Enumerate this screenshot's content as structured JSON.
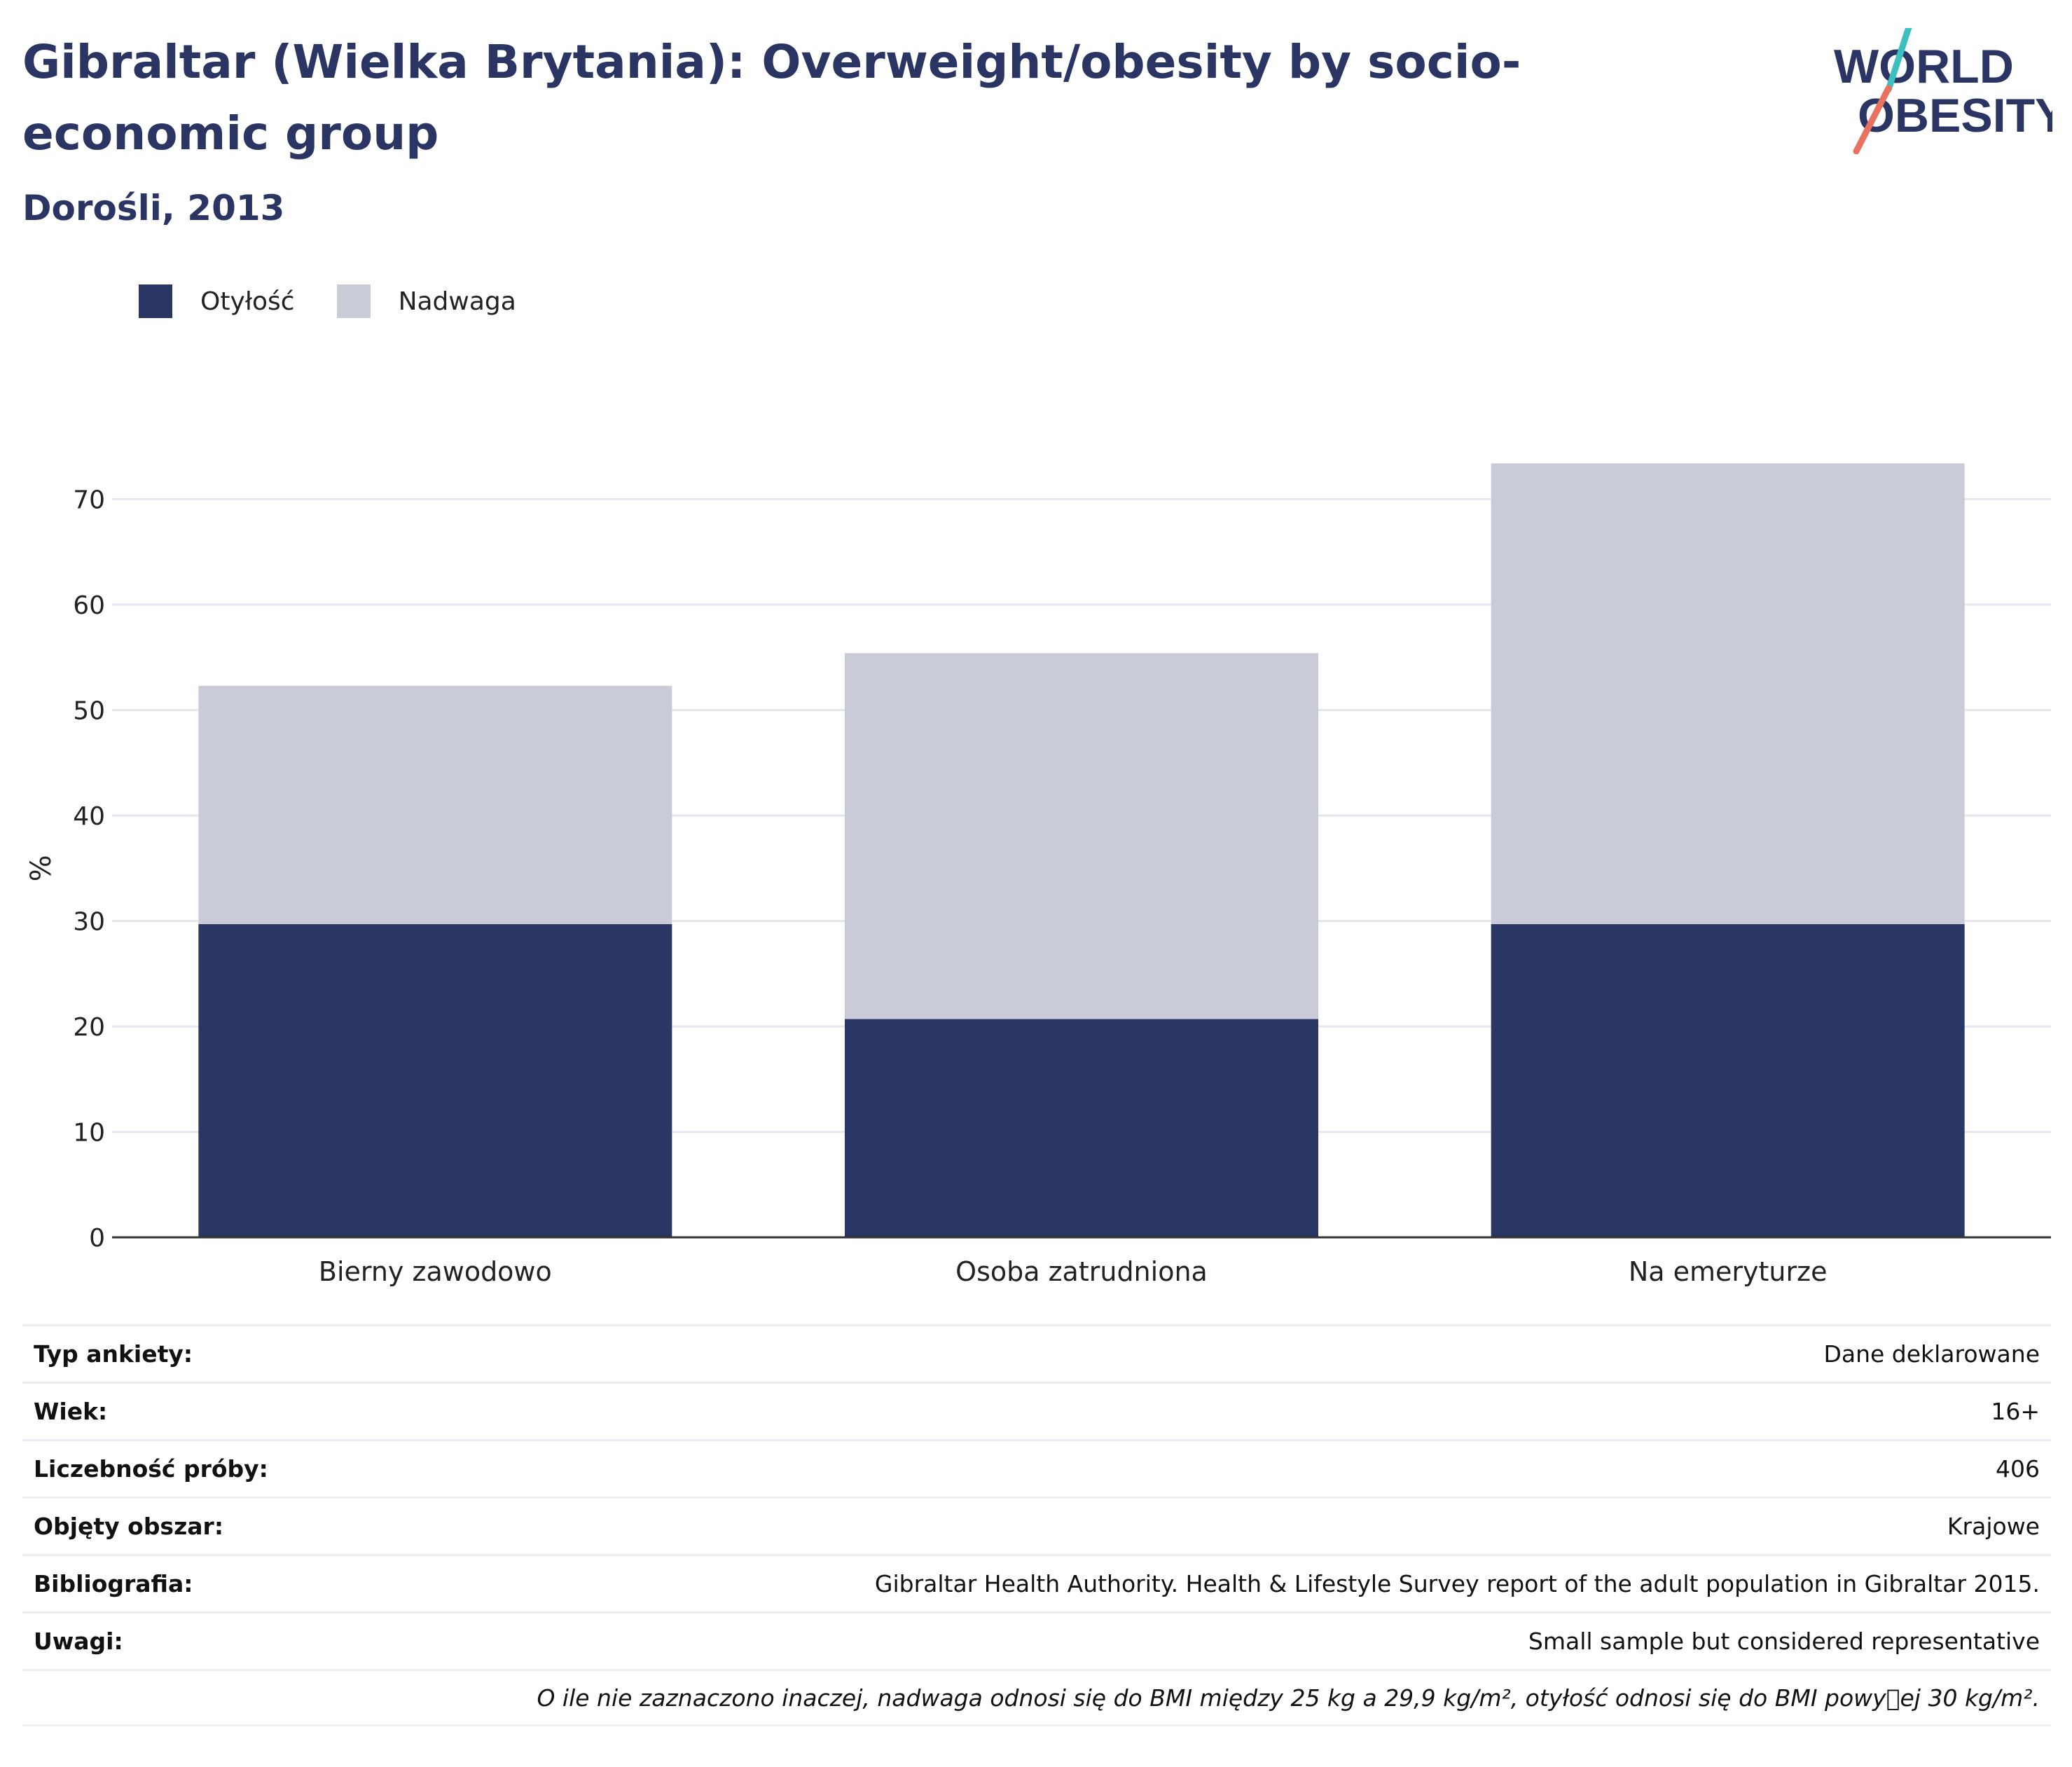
{
  "header": {
    "title": "Gibraltar (Wielka Brytania): Overweight/obesity by socio-economic group",
    "subtitle": "Dorośli, 2013"
  },
  "logo": {
    "line1": "WORLD",
    "line2": "OBESITY"
  },
  "colors": {
    "obesity": "#2a3663",
    "overweight": "#c9cbd7",
    "title": "#2a3563",
    "grid": "#e6e7ee"
  },
  "chart_data": {
    "type": "bar",
    "stacked": true,
    "categories": [
      "Bierny zawodowo",
      "Osoba zatrudniona",
      "Na emeryturze"
    ],
    "series": [
      {
        "name": "Otyłość",
        "values": [
          29.7,
          20.7,
          29.7
        ]
      },
      {
        "name": "Nadwaga",
        "values": [
          22.6,
          34.7,
          43.7
        ]
      }
    ],
    "ylabel": "%",
    "xlabel": "",
    "ylim": [
      0,
      80
    ],
    "yticks": [
      0,
      10,
      20,
      30,
      40,
      50,
      60,
      70
    ],
    "grid": true,
    "legend": "top-left"
  },
  "info": [
    {
      "label": "Typ ankiety:",
      "value": "Dane deklarowane"
    },
    {
      "label": "Wiek:",
      "value": "16+"
    },
    {
      "label": "Liczebność próby:",
      "value": "406"
    },
    {
      "label": "Objęty obszar:",
      "value": "Krajowe"
    },
    {
      "label": "Bibliografia:",
      "value": "Gibraltar Health Authority. Health & Lifestyle Survey report of the adult population in Gibraltar 2015."
    },
    {
      "label": "Uwagi:",
      "value": "Small sample but considered representative"
    }
  ],
  "footnote": "O ile nie zaznaczono inaczej, nadwaga odnosi się do BMI między 25 kg a 29,9 kg/m², otyłość odnosi się do BMI powy\u0000ej 30 kg/m²."
}
